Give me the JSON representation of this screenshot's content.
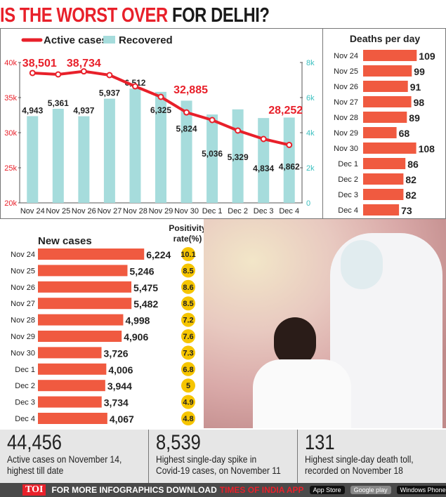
{
  "title": {
    "red": "IS THE WORST OVER",
    "black": "FOR DELHI?"
  },
  "chart_data": [
    {
      "type": "bar+line",
      "categories": [
        "Nov 24",
        "Nov 25",
        "Nov 26",
        "Nov 27",
        "Nov 28",
        "Nov 29",
        "Nov 30",
        "Dec 1",
        "Dec 2",
        "Dec 3",
        "Dec 4"
      ],
      "series": [
        {
          "name": "Active cases",
          "type": "line",
          "axis": "left",
          "values": [
            38501,
            38300,
            38734,
            38200,
            36600,
            35100,
            32885,
            31800,
            30300,
            29100,
            28252
          ],
          "labels": [
            "38,501",
            "",
            "38,734",
            "",
            "",
            "",
            "32,885",
            "",
            "",
            "",
            "28,252"
          ],
          "color": "#e8202a"
        },
        {
          "name": "Recovered",
          "type": "bar",
          "axis": "right",
          "values": [
            4943,
            5361,
            4937,
            5937,
            6512,
            6325,
            5824,
            5036,
            5329,
            4834,
            4862
          ],
          "labels": [
            "4,943",
            "5,361",
            "4,937",
            "5,937",
            "6,512",
            "6,325",
            "5,824",
            "5,036",
            "5,329",
            "4,834",
            "4,862"
          ],
          "color": "#a6dcdc"
        }
      ],
      "left_ylim": [
        20000,
        40000
      ],
      "left_ticks": [
        "20k",
        "25k",
        "30k",
        "35k",
        "40k"
      ],
      "right_ylim": [
        0,
        8000
      ],
      "right_ticks": [
        "0",
        "2k",
        "4k",
        "6k",
        "8k"
      ],
      "legend": "top-left"
    },
    {
      "type": "bar",
      "orientation": "horizontal",
      "title": "Deaths per day",
      "categories": [
        "Nov 24",
        "Nov 25",
        "Nov 26",
        "Nov 27",
        "Nov 28",
        "Nov 29",
        "Nov 30",
        "Dec 1",
        "Dec 2",
        "Dec 3",
        "Dec 4"
      ],
      "values": [
        109,
        99,
        91,
        98,
        89,
        68,
        108,
        86,
        82,
        82,
        73
      ],
      "color": "#f05a40"
    },
    {
      "type": "bar",
      "orientation": "horizontal",
      "title": "New cases",
      "categories": [
        "Nov 24",
        "Nov 25",
        "Nov 26",
        "Nov 27",
        "Nov 28",
        "Nov 29",
        "Nov 30",
        "Dec 1",
        "Dec 2",
        "Dec 3",
        "Dec 4"
      ],
      "values": [
        6224,
        5246,
        5475,
        5482,
        4998,
        4906,
        3726,
        4006,
        3944,
        3734,
        4067
      ],
      "labels": [
        "6,224",
        "5,246",
        "5,475",
        "5,482",
        "4,998",
        "4,906",
        "3,726",
        "4,006",
        "3,944",
        "3,734",
        "4,067"
      ],
      "color": "#f05a40",
      "positivity_title": [
        "Positivity",
        "rate(%)"
      ],
      "positivity": [
        "10.1",
        "8.5",
        "8.6",
        "8.5",
        "7.2",
        "7.6",
        "7.3",
        "6.8",
        "5",
        "4.9",
        "4.8"
      ],
      "positivity_color": "#f6c500"
    }
  ],
  "stats": [
    {
      "value": "44,456",
      "line1": "Active cases on November 14,",
      "line2": "highest till date"
    },
    {
      "value": "8,539",
      "line1": "Highest single-day spike in",
      "line2": "Covid-19 cases, on November 11"
    },
    {
      "value": "131",
      "line1": "Highest single-day death toll,",
      "line2": "recorded on November 18"
    }
  ],
  "footer": {
    "logo": "TOI",
    "text": "FOR MORE INFOGRAPHICS DOWNLOAD",
    "app": "TIMES OF INDIA APP",
    "appstore": "App Store",
    "googleplay": "Google play",
    "windows": "Windows Phone"
  }
}
